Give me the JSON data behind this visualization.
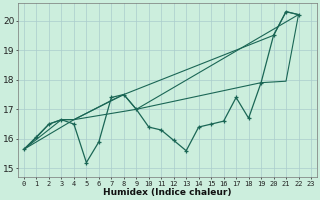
{
  "xlabel": "Humidex (Indice chaleur)",
  "bg_color": "#cceedd",
  "grid_color": "#aacccc",
  "line_color": "#1a6655",
  "xlim": [
    -0.5,
    23.5
  ],
  "ylim": [
    14.7,
    20.6
  ],
  "xticks": [
    0,
    1,
    2,
    3,
    4,
    5,
    6,
    7,
    8,
    9,
    10,
    11,
    12,
    13,
    14,
    15,
    16,
    17,
    18,
    19,
    20,
    21,
    22,
    23
  ],
  "yticks": [
    15,
    16,
    17,
    18,
    19,
    20
  ],
  "line1_x": [
    0,
    1,
    2,
    3,
    4,
    5,
    6,
    7,
    8,
    9,
    10,
    11,
    12,
    13,
    14,
    15,
    16,
    17,
    18,
    19,
    20,
    21,
    22
  ],
  "line1_y": [
    15.65,
    16.05,
    16.5,
    16.65,
    16.5,
    15.2,
    15.9,
    17.4,
    17.5,
    17.0,
    16.4,
    16.3,
    15.95,
    15.6,
    16.4,
    16.5,
    16.6,
    17.4,
    16.7,
    17.9,
    19.5,
    20.3,
    20.2
  ],
  "line2_x": [
    0,
    2,
    3,
    4,
    8,
    20,
    21,
    22
  ],
  "line2_y": [
    15.65,
    16.5,
    16.65,
    16.65,
    17.5,
    19.5,
    20.3,
    20.2
  ],
  "line3_x": [
    0,
    3,
    4,
    7,
    8,
    9,
    22
  ],
  "line3_y": [
    15.65,
    16.65,
    16.65,
    17.3,
    17.5,
    17.0,
    20.2
  ],
  "line4_x": [
    0,
    4,
    9,
    19,
    21,
    22
  ],
  "line4_y": [
    15.65,
    16.65,
    17.0,
    17.9,
    17.95,
    20.2
  ]
}
